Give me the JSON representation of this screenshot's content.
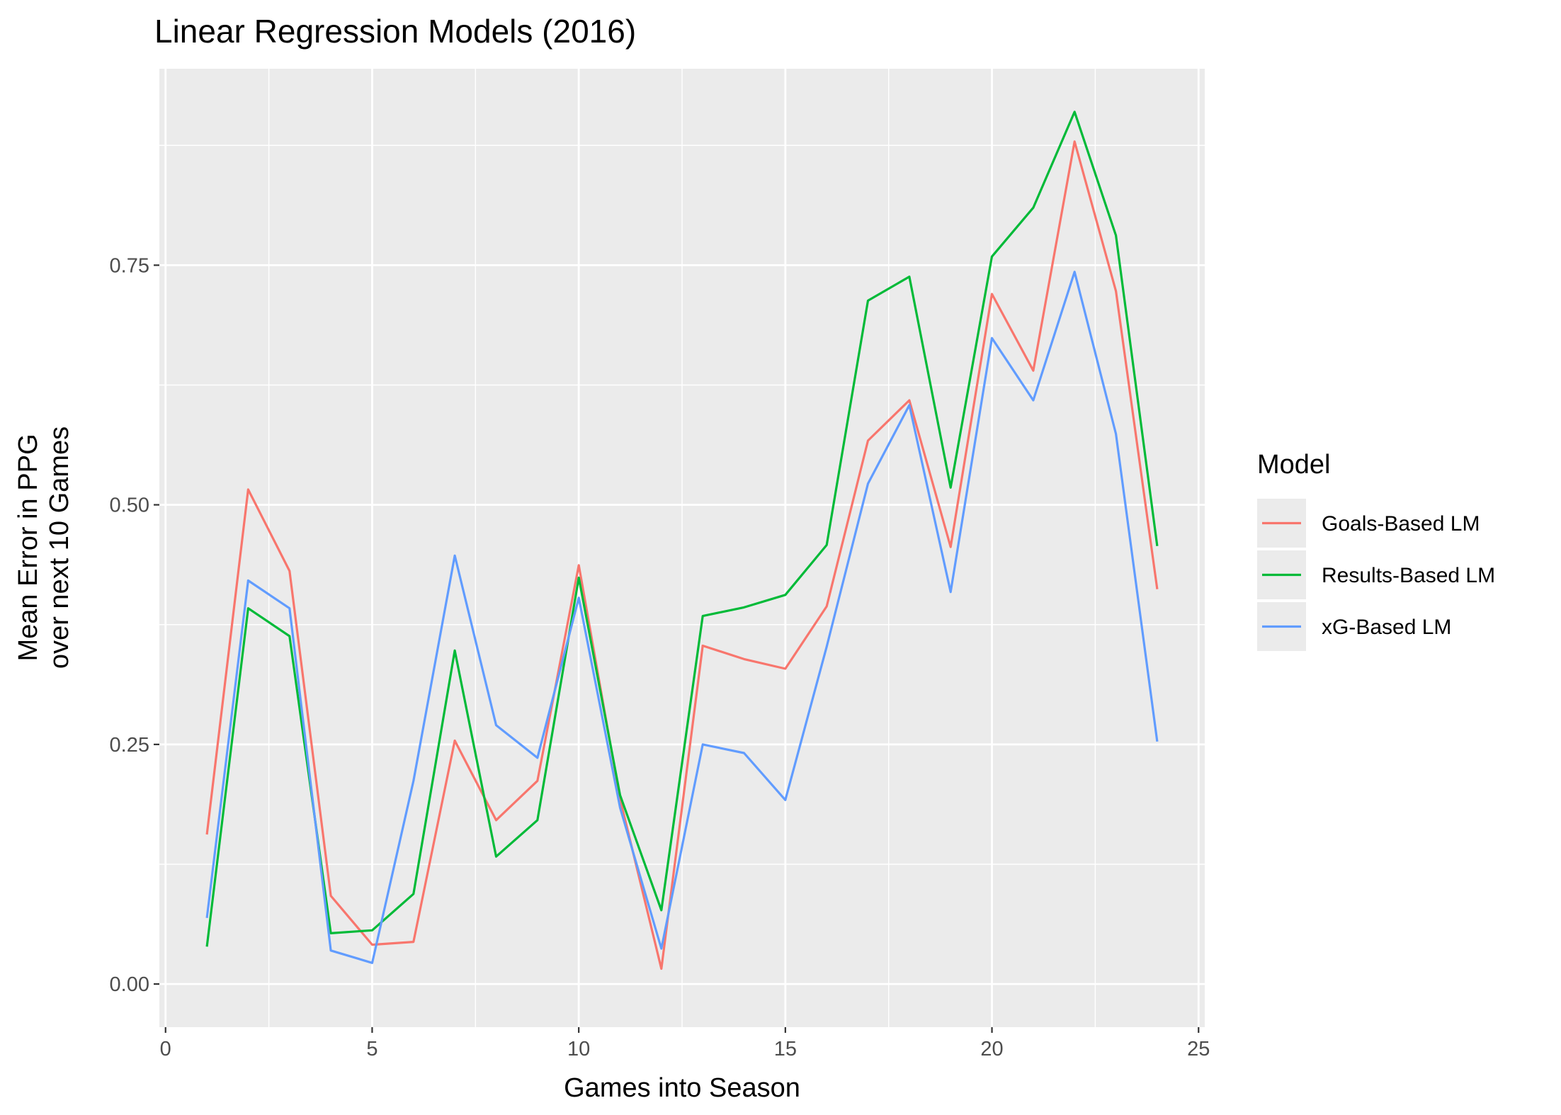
{
  "chart_data": {
    "type": "line",
    "title": "Linear Regression Models (2016)",
    "xlabel": "Games into Season",
    "ylabel_lines": [
      "Mean Error in PPG",
      "over next 10 Games"
    ],
    "xlim": [
      -0.15,
      25.15
    ],
    "ylim": [
      -0.045,
      0.955
    ],
    "x_ticks": [
      0,
      5,
      10,
      15,
      20,
      25
    ],
    "x_tick_labels": [
      "0",
      "5",
      "10",
      "15",
      "20",
      "25"
    ],
    "y_ticks": [
      0,
      0.25,
      0.5,
      0.75
    ],
    "y_tick_labels": [
      "0.00",
      "0.25",
      "0.50",
      "0.75"
    ],
    "grid": true,
    "legend": {
      "title": "Model",
      "placement": "right"
    },
    "x": [
      1,
      2,
      3,
      4,
      5,
      6,
      7,
      8,
      9,
      10,
      11,
      12,
      13,
      14,
      15,
      16,
      17,
      18,
      19,
      20,
      21,
      22,
      23,
      24
    ],
    "series": [
      {
        "name": "Goals-Based LM",
        "color": "#F8766D",
        "values": [
          0.156,
          0.516,
          0.431,
          0.092,
          0.041,
          0.044,
          0.254,
          0.171,
          0.212,
          0.437,
          0.193,
          0.016,
          0.353,
          0.339,
          0.329,
          0.394,
          0.567,
          0.609,
          0.456,
          0.72,
          0.64,
          0.879,
          0.723,
          0.412
        ]
      },
      {
        "name": "Results-Based LM",
        "color": "#00BA38",
        "values": [
          0.039,
          0.392,
          0.363,
          0.053,
          0.056,
          0.094,
          0.348,
          0.133,
          0.171,
          0.424,
          0.197,
          0.077,
          0.384,
          0.393,
          0.406,
          0.458,
          0.713,
          0.738,
          0.518,
          0.759,
          0.81,
          0.91,
          0.781,
          0.457
        ]
      },
      {
        "name": "xG-Based LM",
        "color": "#619CFF",
        "values": [
          0.069,
          0.421,
          0.392,
          0.035,
          0.022,
          0.212,
          0.447,
          0.27,
          0.236,
          0.403,
          0.184,
          0.037,
          0.25,
          0.241,
          0.192,
          0.352,
          0.522,
          0.604,
          0.409,
          0.674,
          0.609,
          0.743,
          0.574,
          0.253
        ]
      }
    ]
  }
}
